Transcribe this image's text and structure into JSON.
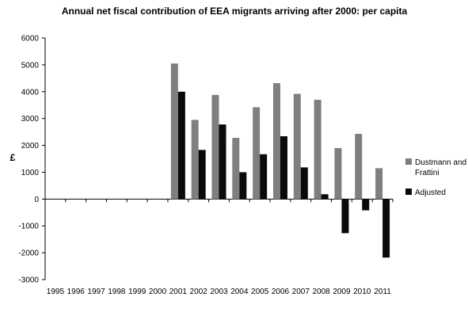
{
  "chart_data": {
    "type": "bar",
    "title": "Annual net fiscal contribution of EEA migrants arriving after 2000: per capita",
    "xlabel": "",
    "ylabel": "£",
    "ylim": [
      -3000,
      6000
    ],
    "yticks": [
      -3000,
      -2000,
      -1000,
      0,
      1000,
      2000,
      3000,
      4000,
      5000,
      6000
    ],
    "grid": false,
    "legend_position": "right",
    "categories": [
      "1995",
      "1996",
      "1997",
      "1998",
      "1999",
      "2000",
      "2001",
      "2002",
      "2003",
      "2004",
      "2005",
      "2006",
      "2007",
      "2008",
      "2009",
      "2010",
      "2011"
    ],
    "series": [
      {
        "name": "Dustmann and Frattini",
        "color": "#7f7f7f",
        "values": [
          0,
          0,
          0,
          0,
          0,
          0,
          5050,
          2950,
          3880,
          2280,
          3420,
          4320,
          3920,
          3700,
          1900,
          2430,
          1150
        ]
      },
      {
        "name": "Adjusted",
        "color": "#0a0a0a",
        "values": [
          0,
          0,
          0,
          0,
          0,
          0,
          4000,
          1830,
          2780,
          1000,
          1670,
          2340,
          1180,
          180,
          -1270,
          -420,
          -2180
        ]
      }
    ]
  }
}
